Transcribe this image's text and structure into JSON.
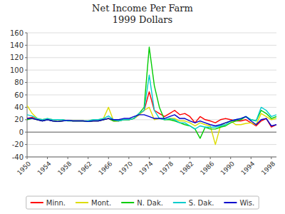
{
  "chart_data": {
    "type": "line",
    "title": "Net Income Per Farm\n1999 Dollars",
    "x": [
      1950,
      1951,
      1952,
      1953,
      1954,
      1955,
      1956,
      1957,
      1958,
      1959,
      1960,
      1961,
      1962,
      1963,
      1964,
      1965,
      1966,
      1967,
      1968,
      1969,
      1970,
      1971,
      1972,
      1973,
      1974,
      1975,
      1976,
      1977,
      1978,
      1979,
      1980,
      1981,
      1982,
      1983,
      1984,
      1985,
      1986,
      1987,
      1988,
      1989,
      1990,
      1991,
      1992,
      1993,
      1994,
      1995,
      1996,
      1997,
      1998,
      1999
    ],
    "series": [
      {
        "name": "Minn.",
        "color": "#ff0000",
        "values": [
          22,
          24,
          20,
          18,
          20,
          18,
          17,
          18,
          19,
          18,
          18,
          18,
          17,
          18,
          18,
          20,
          22,
          18,
          18,
          20,
          20,
          22,
          28,
          35,
          65,
          35,
          30,
          25,
          30,
          35,
          28,
          30,
          25,
          15,
          25,
          20,
          18,
          15,
          20,
          22,
          20,
          18,
          18,
          20,
          15,
          10,
          18,
          22,
          8,
          12
        ]
      },
      {
        "name": "Mont.",
        "color": "#dddd00",
        "values": [
          43,
          30,
          22,
          20,
          22,
          20,
          20,
          20,
          18,
          18,
          18,
          18,
          18,
          20,
          20,
          22,
          40,
          18,
          18,
          20,
          20,
          22,
          28,
          35,
          40,
          20,
          22,
          20,
          22,
          22,
          18,
          18,
          15,
          10,
          15,
          12,
          10,
          -20,
          10,
          15,
          18,
          12,
          12,
          14,
          15,
          12,
          30,
          25,
          20,
          22
        ]
      },
      {
        "name": "N. Dak.",
        "color": "#00cc00",
        "values": [
          20,
          22,
          20,
          18,
          20,
          18,
          17,
          18,
          19,
          18,
          18,
          18,
          17,
          18,
          18,
          20,
          22,
          18,
          18,
          20,
          20,
          22,
          30,
          40,
          137,
          75,
          40,
          20,
          20,
          18,
          15,
          12,
          10,
          5,
          -10,
          8,
          5,
          5,
          8,
          10,
          15,
          18,
          20,
          25,
          20,
          18,
          35,
          30,
          22,
          25
        ]
      },
      {
        "name": "S. Dak.",
        "color": "#00cccc",
        "values": [
          28,
          26,
          22,
          20,
          22,
          20,
          20,
          20,
          18,
          18,
          18,
          18,
          18,
          20,
          20,
          22,
          26,
          20,
          18,
          20,
          20,
          22,
          30,
          35,
          92,
          35,
          22,
          20,
          22,
          20,
          15,
          15,
          10,
          5,
          10,
          8,
          8,
          8,
          10,
          12,
          18,
          20,
          22,
          25,
          20,
          18,
          40,
          35,
          25,
          28
        ]
      },
      {
        "name": "Wis.",
        "color": "#0000cc",
        "values": [
          22,
          22,
          20,
          18,
          20,
          18,
          17,
          18,
          19,
          18,
          18,
          18,
          17,
          18,
          18,
          20,
          22,
          20,
          20,
          22,
          22,
          25,
          28,
          28,
          25,
          22,
          22,
          22,
          25,
          28,
          22,
          22,
          18,
          15,
          18,
          15,
          12,
          10,
          12,
          15,
          18,
          20,
          22,
          25,
          18,
          12,
          20,
          22,
          10,
          12
        ]
      }
    ],
    "xlim": [
      1950,
      1999
    ],
    "xticks": [
      1950,
      1954,
      1958,
      1962,
      1966,
      1970,
      1974,
      1978,
      1982,
      1986,
      1990,
      1994,
      1998
    ],
    "ylim": [
      -40,
      160
    ],
    "yticks": [
      -40,
      -20,
      0,
      20,
      40,
      60,
      80,
      100,
      120,
      140,
      160
    ],
    "grid": true,
    "legend": "bottom"
  }
}
